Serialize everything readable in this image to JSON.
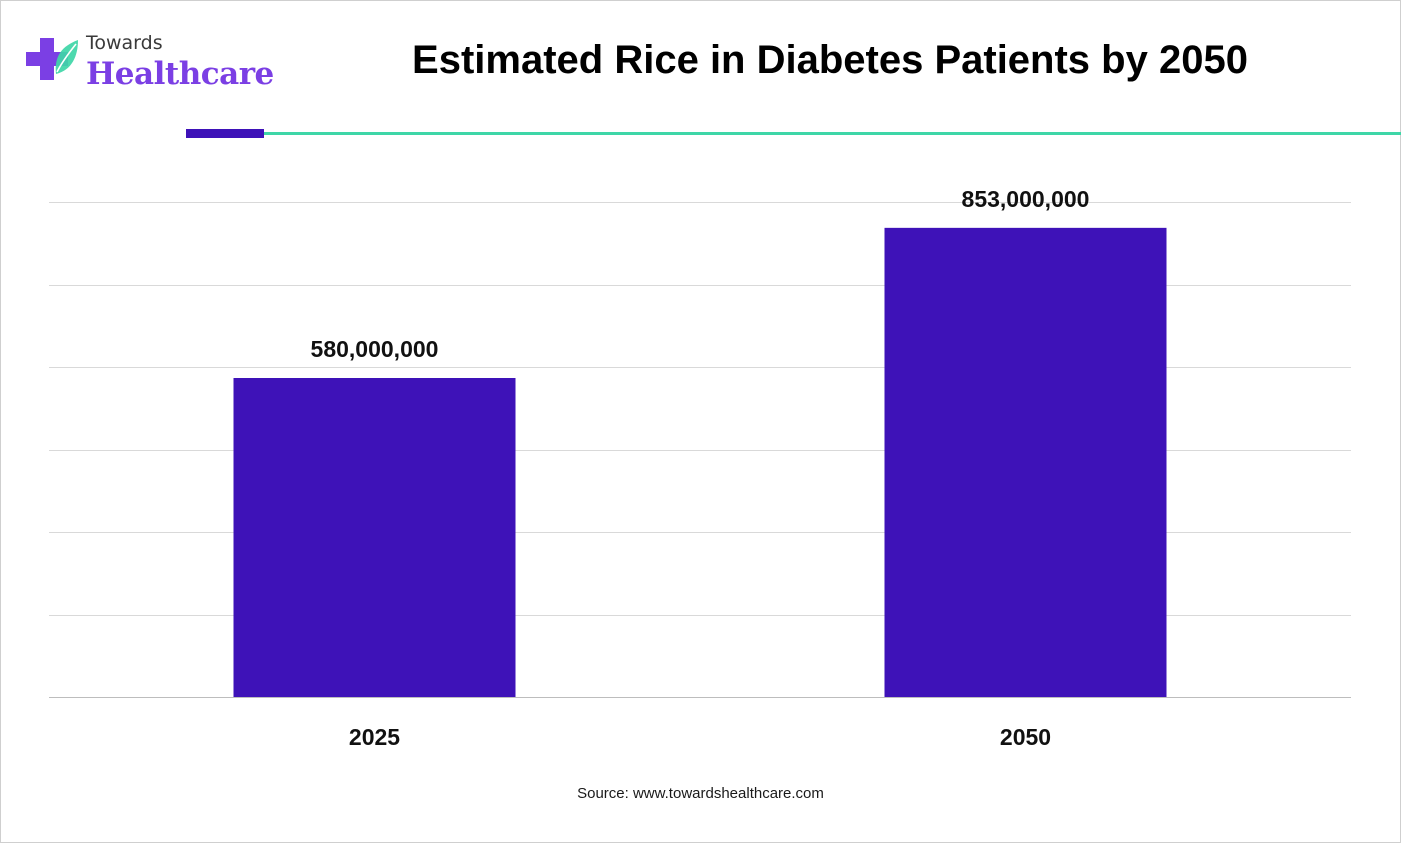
{
  "brand": {
    "line1": "Towards",
    "line2": "Healthcare",
    "colors": {
      "purple": "#7b3fe4",
      "teal": "#3ed6a7"
    }
  },
  "accent_colors": {
    "bar": "#3e12b8",
    "divider_accent": "#3e12b8",
    "divider_line": "#3ed6a7"
  },
  "source": "Source: www.towardshealthcare.com",
  "chart_data": {
    "type": "bar",
    "title": "Estimated Rice in Diabetes Patients by 2050",
    "categories": [
      "2025",
      "2050"
    ],
    "values": [
      580000000,
      853000000
    ],
    "data_labels": [
      "580,000,000",
      "853,000,000"
    ],
    "xlabel": "",
    "ylabel": "",
    "ylim": [
      0,
      900000000
    ],
    "grid": true,
    "legend": "none"
  }
}
